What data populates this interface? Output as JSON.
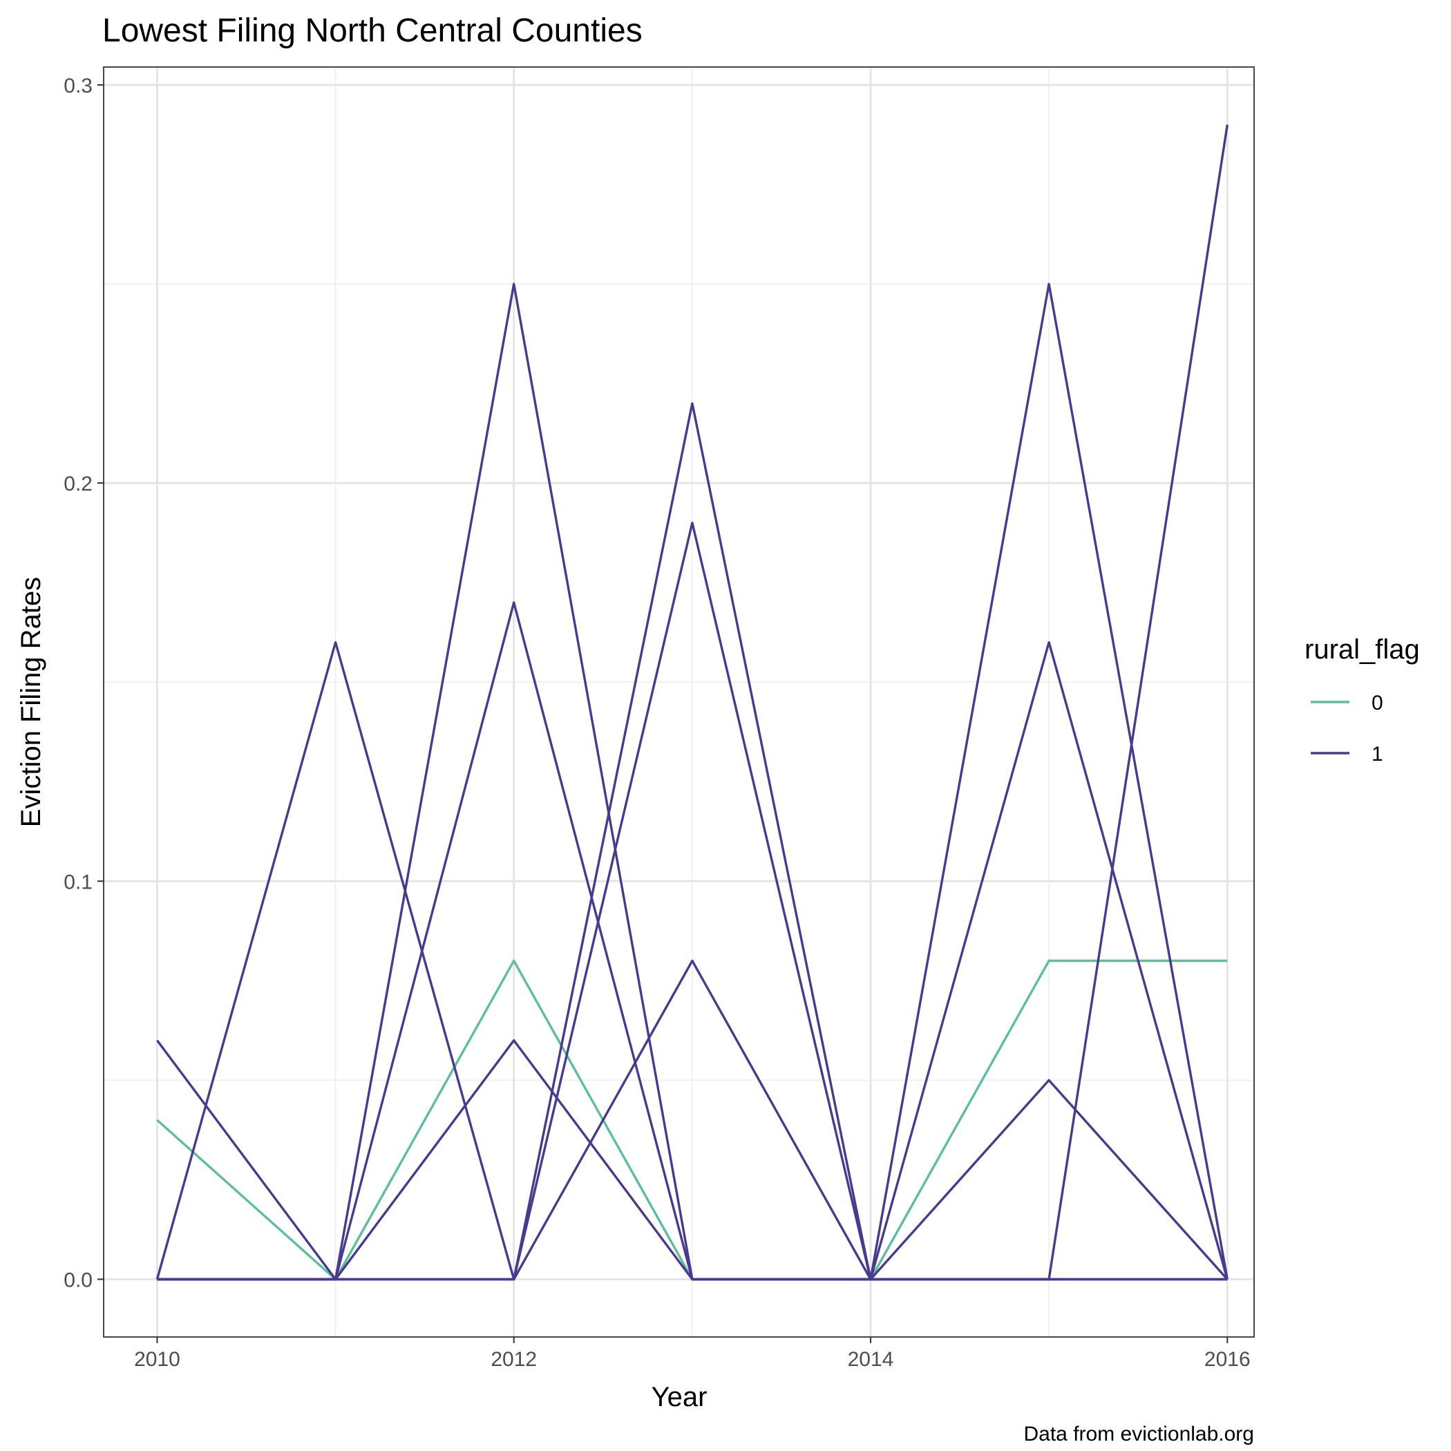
{
  "chart_data": {
    "type": "line",
    "title": "Lowest Filing North Central Counties",
    "xlabel": "Year",
    "ylabel": "Eviction Filing Rates",
    "caption": "Data from evictionlab.org",
    "xlim": [
      2009.7,
      2016.15
    ],
    "ylim": [
      -0.0145,
      0.3045
    ],
    "x_ticks": [
      2010,
      2012,
      2014,
      2016
    ],
    "x_tick_labels": [
      "2010",
      "2012",
      "2014",
      "2016"
    ],
    "x_minor_ticks": [
      2011,
      2013,
      2015
    ],
    "y_ticks": [
      0,
      0.1,
      0.2,
      0.3
    ],
    "y_tick_labels": [
      "0.0",
      "0.1",
      "0.2",
      "0.3"
    ],
    "y_minor_ticks": [
      0.05,
      0.15,
      0.25
    ],
    "grid": true,
    "legend": {
      "title": "rural_flag",
      "position": "right",
      "entries": [
        {
          "label": "0",
          "color": "#5bbf9c"
        },
        {
          "label": "1",
          "color": "#483a8e"
        }
      ]
    },
    "x": [
      2010,
      2011,
      2012,
      2013,
      2014,
      2015,
      2016
    ],
    "series": [
      {
        "group": "0",
        "color": "#5bbf9c",
        "values": [
          0.04,
          0,
          0.08,
          0,
          0,
          0.08,
          0.08
        ]
      },
      {
        "group": "1",
        "color": "#483a8e",
        "values": [
          0.06,
          0,
          0.06,
          0,
          0,
          0.05,
          0
        ]
      },
      {
        "group": "1",
        "color": "#483a8e",
        "values": [
          0,
          0.16,
          0,
          0.08,
          0,
          0.16,
          0
        ]
      },
      {
        "group": "1",
        "color": "#483a8e",
        "values": [
          0,
          0,
          0.25,
          0,
          0,
          0.25,
          0
        ]
      },
      {
        "group": "1",
        "color": "#483a8e",
        "values": [
          0,
          0,
          0.17,
          0,
          0,
          0,
          0.29
        ]
      },
      {
        "group": "1",
        "color": "#483a8e",
        "values": [
          0,
          0,
          0,
          0.22,
          0,
          0,
          0
        ]
      },
      {
        "group": "1",
        "color": "#483a8e",
        "values": [
          0,
          0,
          0,
          0.19,
          0,
          0,
          0
        ]
      }
    ]
  }
}
